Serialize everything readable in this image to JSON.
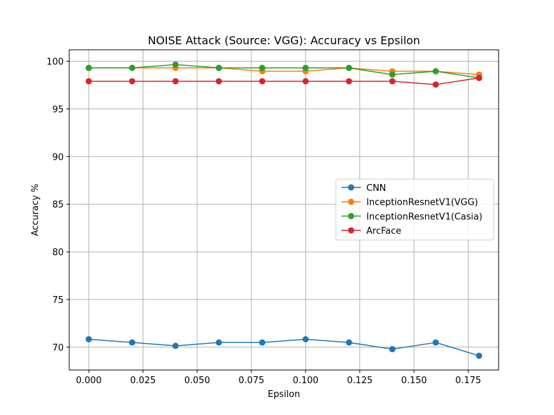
{
  "chart_data": {
    "type": "line",
    "title": "NOISE Attack (Source: VGG): Accuracy vs Epsilon",
    "xlabel": "Epsilon",
    "ylabel": "Accuracy %",
    "x": [
      0.0,
      0.02,
      0.04,
      0.06,
      0.08,
      0.1,
      0.12,
      0.14,
      0.16,
      0.18
    ],
    "xlim": [
      -0.009,
      0.189
    ],
    "ylim": [
      67.6,
      101.2
    ],
    "xticks": [
      0.0,
      0.025,
      0.05,
      0.075,
      0.1,
      0.125,
      0.15,
      0.175
    ],
    "xtick_labels": [
      "0.000",
      "0.025",
      "0.050",
      "0.075",
      "0.100",
      "0.125",
      "0.150",
      "0.175"
    ],
    "yticks": [
      70,
      75,
      80,
      85,
      90,
      95,
      100
    ],
    "ytick_labels": [
      "70",
      "75",
      "80",
      "85",
      "90",
      "95",
      "100"
    ],
    "grid": true,
    "legend_position": "center-right",
    "series": [
      {
        "name": "CNN",
        "color": "#1f77b4",
        "values": [
          70.83,
          70.49,
          70.14,
          70.49,
          70.49,
          70.83,
          70.49,
          69.79,
          70.49,
          69.1
        ]
      },
      {
        "name": "InceptionResnetV1(VGG)",
        "color": "#ff7f0e",
        "values": [
          99.3,
          99.3,
          99.3,
          99.3,
          98.95,
          98.95,
          99.3,
          98.95,
          98.95,
          98.6
        ]
      },
      {
        "name": "InceptionResnetV1(Casia)",
        "color": "#2ca02c",
        "values": [
          99.3,
          99.3,
          99.65,
          99.3,
          99.3,
          99.3,
          99.3,
          98.6,
          98.95,
          98.25
        ]
      },
      {
        "name": "ArcFace",
        "color": "#d62728",
        "values": [
          97.9,
          97.9,
          97.9,
          97.9,
          97.9,
          97.9,
          97.9,
          97.9,
          97.55,
          98.25
        ]
      }
    ]
  }
}
